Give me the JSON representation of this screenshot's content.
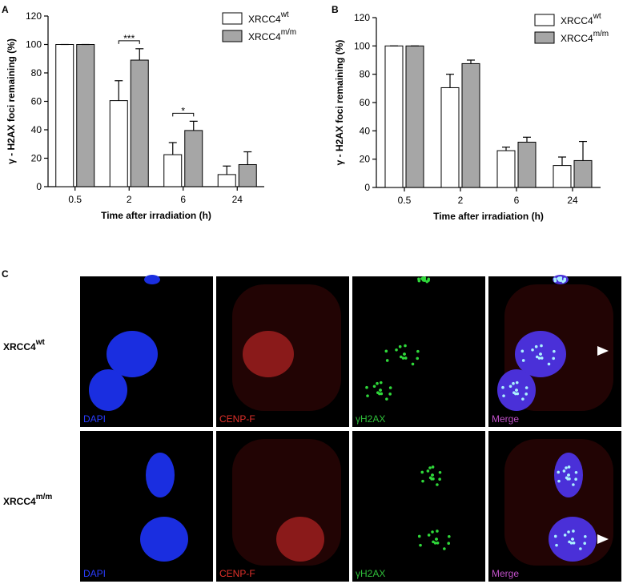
{
  "panel_labels": [
    "A",
    "B",
    "C"
  ],
  "chart_data": [
    {
      "type": "bar",
      "x_label": "Time after irradiation (h)",
      "y_label": "γ - H2AX foci remaining (%)",
      "categories": [
        "0.5",
        "2",
        "6",
        "24"
      ],
      "series": [
        {
          "name": "XRCC4",
          "name_superscript": "wt",
          "color": "#ffffff",
          "values": [
            100,
            60.5,
            22.5,
            8.5
          ],
          "errors": [
            0,
            14,
            8.5,
            6
          ]
        },
        {
          "name": "XRCC4",
          "name_superscript": "m/m",
          "color": "#a6a6a6",
          "values": [
            100,
            89,
            39.5,
            15.5
          ],
          "errors": [
            0,
            8,
            6.5,
            9
          ]
        }
      ],
      "annotations": [
        {
          "text": "***",
          "category": "2"
        },
        {
          "text": "*",
          "category": "6"
        }
      ],
      "ylim": [
        0,
        120
      ],
      "yticks": [
        0,
        20,
        40,
        60,
        80,
        100,
        120
      ]
    },
    {
      "type": "bar",
      "x_label": "Time after irradiation (h)",
      "y_label": "γ - H2AX foci remaining (%)",
      "categories": [
        "0.5",
        "2",
        "6",
        "24"
      ],
      "series": [
        {
          "name": "XRCC4",
          "name_superscript": "wt",
          "color": "#ffffff",
          "values": [
            100,
            70.5,
            26,
            15.5
          ],
          "errors": [
            0,
            9.5,
            2.5,
            6
          ]
        },
        {
          "name": "XRCC4",
          "name_superscript": "m/m",
          "color": "#a6a6a6",
          "values": [
            100,
            87.5,
            32,
            19
          ],
          "errors": [
            0,
            2.5,
            3.5,
            13.5
          ]
        }
      ],
      "annotations": [],
      "ylim": [
        0,
        120
      ],
      "yticks": [
        0,
        20,
        40,
        60,
        80,
        100,
        120
      ]
    }
  ],
  "microscopy": {
    "rows": [
      {
        "label": "XRCC4",
        "superscript": "wt"
      },
      {
        "label": "XRCC4",
        "superscript": "m/m"
      }
    ],
    "channels": [
      {
        "label": "DAPI",
        "color": "#2a3cff"
      },
      {
        "label": "CENP-F",
        "color": "#e0302a"
      },
      {
        "label": "γH2AX",
        "color": "#2fbf3a"
      },
      {
        "label": "Merge",
        "color": "#c050c8"
      }
    ]
  }
}
